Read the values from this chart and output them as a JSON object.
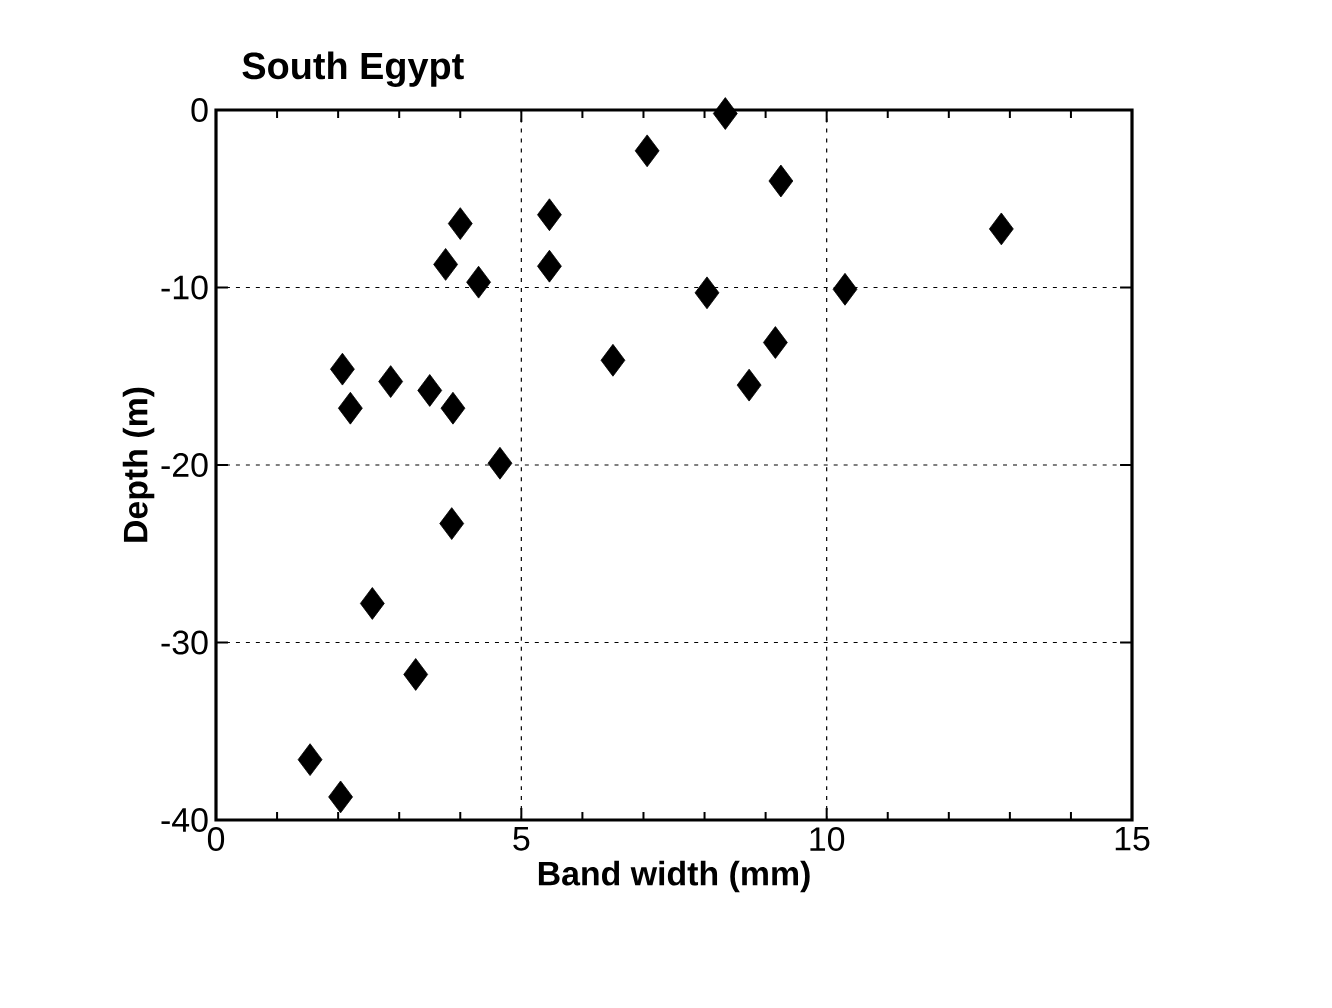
{
  "chart_data": {
    "type": "scatter",
    "title": "South Egypt",
    "xlabel": "Band width (mm)",
    "ylabel": "Depth (m)",
    "x": [
      4.0,
      3.76,
      4.3,
      5.46,
      5.46,
      2.07,
      2.2,
      2.86,
      3.5,
      3.88,
      4.65,
      3.86,
      2.56,
      3.27,
      1.54,
      2.04,
      8.34,
      7.06,
      9.25,
      12.86,
      8.04,
      10.3,
      6.5,
      9.16,
      8.73
    ],
    "values": [
      -6.4,
      -8.7,
      -9.7,
      -5.9,
      -8.8,
      -14.6,
      -16.8,
      -15.3,
      -15.8,
      -16.8,
      -19.9,
      -23.3,
      -27.8,
      -31.8,
      -36.6,
      -38.7,
      -0.2,
      -2.3,
      -4.0,
      -6.7,
      -10.3,
      -10.1,
      -14.1,
      -13.1,
      -15.5
    ],
    "color": "#000000",
    "marker": "diamond",
    "xlim": [
      0,
      15
    ],
    "ylim": [
      -40,
      0
    ],
    "xticks": [
      0,
      5,
      10,
      15
    ],
    "yticks": [
      -40,
      -30,
      -20,
      -10,
      0
    ],
    "grid": true
  }
}
